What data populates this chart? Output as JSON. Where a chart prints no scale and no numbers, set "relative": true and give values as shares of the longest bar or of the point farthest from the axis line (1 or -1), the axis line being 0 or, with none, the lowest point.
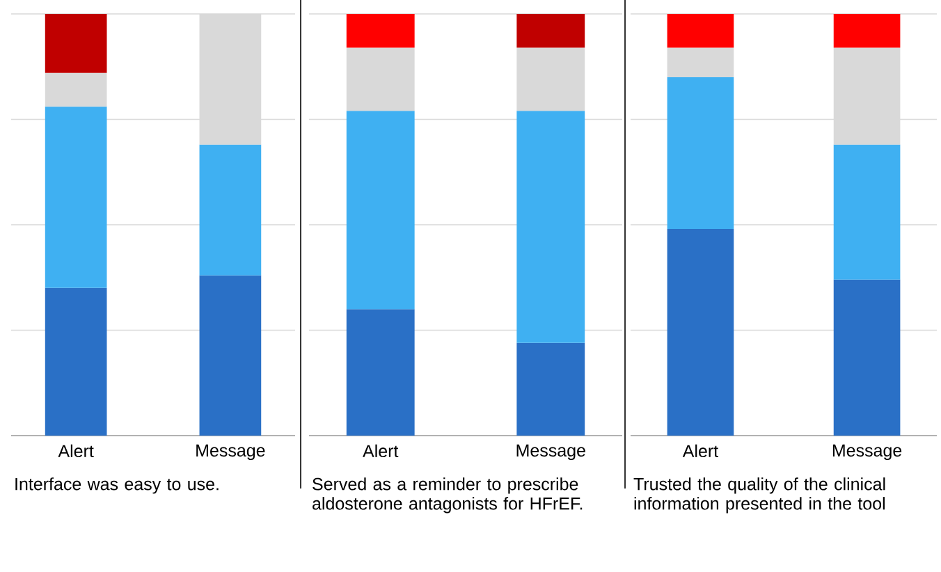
{
  "chart_data": [
    {
      "type": "bar",
      "stacked": true,
      "relative": true,
      "grid": "y",
      "tick_labels": "x",
      "categories": [
        "Alert",
        "Message"
      ],
      "xlabel": "Interface was easy to use.",
      "series": [
        {
          "color": "#2a70c6",
          "values": [
            0.35,
            0.38
          ]
        },
        {
          "color": "#3fb0f2",
          "values": [
            0.43,
            0.31
          ]
        },
        {
          "color": "#d9d9d9",
          "values": [
            0.08,
            0.31
          ]
        },
        {
          "colors": [
            "#c00000",
            "#ff0000"
          ],
          "values": [
            0.14,
            null
          ]
        }
      ]
    },
    {
      "type": "bar",
      "stacked": true,
      "relative": true,
      "grid": "y",
      "tick_labels": "x",
      "categories": [
        "Alert",
        "Message"
      ],
      "xlabel": "Served as a reminder to prescribe aldosterone antagonists for HFrEF.",
      "series": [
        {
          "color": "#2a70c6",
          "values": [
            0.3,
            0.22
          ]
        },
        {
          "color": "#3fb0f2",
          "values": [
            0.47,
            0.55
          ]
        },
        {
          "color": "#d9d9d9",
          "values": [
            0.15,
            0.15
          ]
        },
        {
          "colors": [
            "#ff0000",
            "#c00000"
          ],
          "values": [
            0.08,
            0.08
          ]
        }
      ]
    },
    {
      "type": "bar",
      "stacked": true,
      "relative": true,
      "grid": "y",
      "tick_labels": "x",
      "categories": [
        "Alert",
        "Message"
      ],
      "xlabel": "Trusted the quality of the clinical information presented in the tool",
      "series": [
        {
          "color": "#2a70c6",
          "values": [
            0.49,
            0.37
          ]
        },
        {
          "color": "#3fb0f2",
          "values": [
            0.36,
            0.32
          ]
        },
        {
          "color": "#d9d9d9",
          "values": [
            0.07,
            0.23
          ]
        },
        {
          "colors": [
            "#ff0000",
            "#ff0000"
          ],
          "values": [
            0.08,
            0.08
          ]
        }
      ]
    }
  ]
}
